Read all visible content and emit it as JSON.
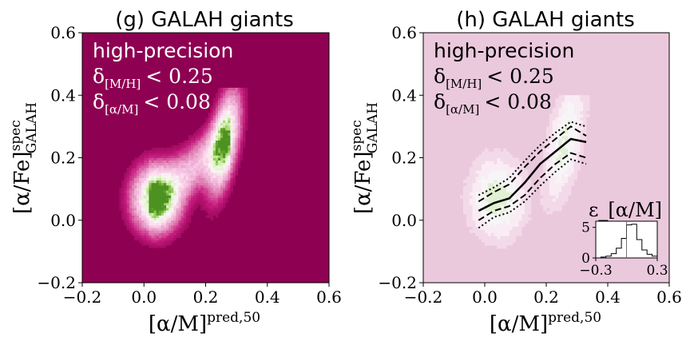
{
  "chart_data": [
    {
      "type": "heatmap",
      "title": "(g) GALAH giants",
      "xlabel": "[α/M]",
      "xlabel_sup": "pred,50",
      "ylabel": "[α/Fe]",
      "ylabel_sup": "spec",
      "ylabel_sub": "GALAH",
      "xlim": [
        -0.2,
        0.6
      ],
      "ylim": [
        -0.2,
        0.6
      ],
      "xticks": [
        "−0.2",
        "0.0",
        "0.2",
        "0.4",
        "0.6"
      ],
      "yticks": [
        "−0.2",
        "0.0",
        "0.2",
        "0.4",
        "0.6"
      ],
      "annotation": {
        "line1": "high-precision",
        "line2_sym": "δ",
        "line2_sub": "[M/H]",
        "line2_rel": "< 0.25",
        "line3_sym": "δ",
        "line3_sub": "[α/M]",
        "line3_rel": "< 0.08"
      },
      "background_color": "#8e0152",
      "clusters": [
        {
          "x": 0.04,
          "y": 0.07,
          "peak": "green"
        },
        {
          "x": 0.26,
          "y": 0.25,
          "peak": "green"
        }
      ]
    },
    {
      "type": "line",
      "title": "(h) GALAH giants",
      "xlabel": "[α/M]",
      "xlabel_sup": "pred,50",
      "ylabel": "[α/Fe]",
      "ylabel_sup": "spec",
      "ylabel_sub": "GALAH",
      "xlim": [
        -0.2,
        0.6
      ],
      "ylim": [
        -0.2,
        0.6
      ],
      "xticks": [
        "−0.2",
        "0.0",
        "0.2",
        "0.4",
        "0.6"
      ],
      "yticks": [
        "−0.2",
        "0.0",
        "0.2",
        "0.4",
        "0.6"
      ],
      "annotation": {
        "line1": "high-precision",
        "line2_sym": "δ",
        "line2_sub": "[M/H]",
        "line2_rel": "< 0.25",
        "line3_sym": "δ",
        "line3_sub": "[α/M]",
        "line3_rel": "< 0.08"
      },
      "background_color": "#ebc9dd",
      "x": [
        -0.02,
        0.03,
        0.08,
        0.13,
        0.18,
        0.23,
        0.28,
        0.33
      ],
      "series": [
        {
          "style": "solid",
          "values": [
            0.03,
            0.055,
            0.07,
            0.12,
            0.18,
            0.22,
            0.26,
            0.25
          ]
        },
        {
          "style": "dashed",
          "values": [
            0.06,
            0.09,
            0.115,
            0.17,
            0.22,
            0.26,
            0.3,
            0.27
          ]
        },
        {
          "style": "dashed",
          "values": [
            0.0,
            0.03,
            0.045,
            0.08,
            0.135,
            0.18,
            0.215,
            0.2
          ]
        },
        {
          "style": "dotted",
          "values": [
            0.08,
            0.105,
            0.135,
            0.19,
            0.24,
            0.28,
            0.315,
            0.3
          ]
        },
        {
          "style": "dotted",
          "values": [
            -0.025,
            0.01,
            0.025,
            0.06,
            0.11,
            0.155,
            0.195,
            0.18
          ]
        }
      ],
      "inset": {
        "type": "histogram",
        "title_sym": "ε",
        "title_sub": "_",
        "title_rest": "[α/M]",
        "xlim": [
          -0.3,
          0.3
        ],
        "ylim": [
          0,
          6
        ],
        "xticks": [
          "−0.3",
          "0.3"
        ],
        "yticks": [
          "0",
          "5"
        ],
        "bins": [
          -0.3,
          -0.25,
          -0.2,
          -0.15,
          -0.1,
          -0.05,
          0.0,
          0.05,
          0.1,
          0.15,
          0.2,
          0.25,
          0.3
        ],
        "counts": [
          0,
          0.15,
          0.3,
          0.7,
          1.6,
          3.2,
          5.4,
          5.5,
          3.0,
          1.3,
          0.6,
          0.3
        ]
      }
    }
  ]
}
